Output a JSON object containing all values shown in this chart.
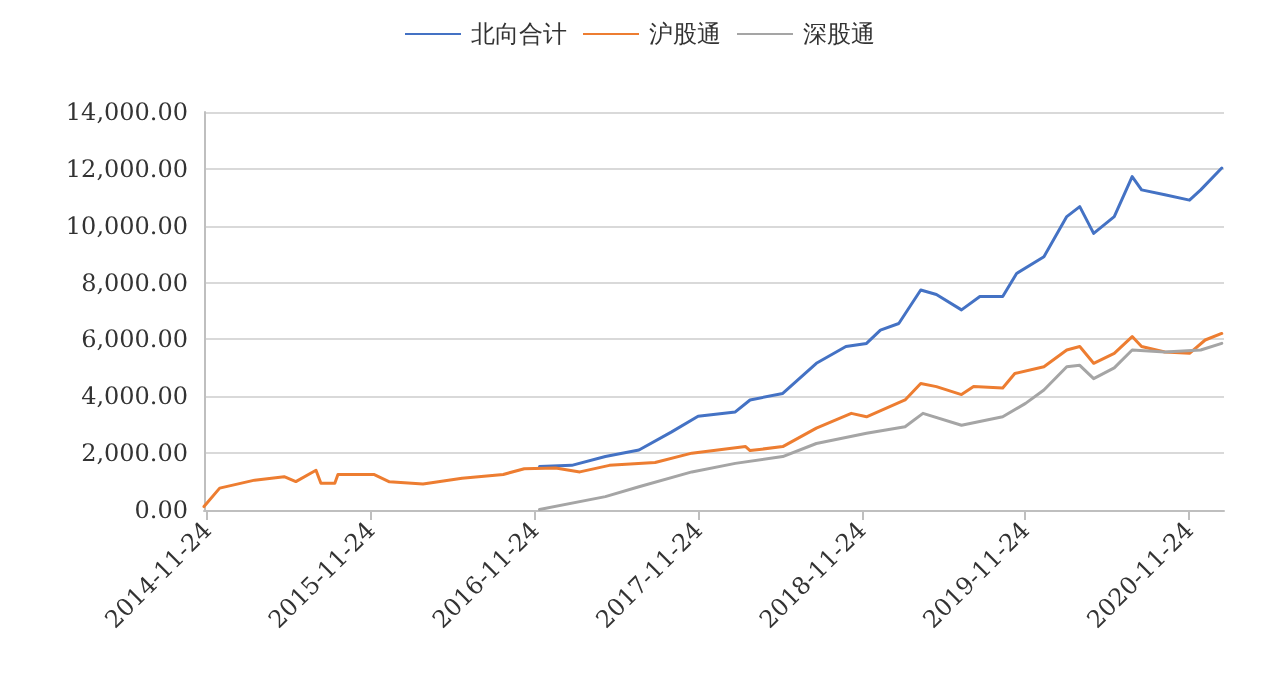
{
  "chart_data": {
    "type": "line",
    "xlim": [
      "2014-11-17",
      "2021-02-10"
    ],
    "xticks": [
      "2014-11-24",
      "2015-11-24",
      "2016-11-24",
      "2017-11-24",
      "2018-11-24",
      "2019-11-24",
      "2020-11-24"
    ],
    "ylim": [
      0,
      14000
    ],
    "yticks": [
      {
        "value": 0,
        "label": "0.00"
      },
      {
        "value": 2000,
        "label": "2,000.00"
      },
      {
        "value": 4000,
        "label": "4,000.00"
      },
      {
        "value": 6000,
        "label": "6,000.00"
      },
      {
        "value": 8000,
        "label": "8,000.00"
      },
      {
        "value": 10000,
        "label": "10,000.00"
      },
      {
        "value": 12000,
        "label": "12,000.00"
      },
      {
        "value": 14000,
        "label": "14,000.00"
      }
    ],
    "grid": "y",
    "legend": "top",
    "marker": "none",
    "line_style": "solid",
    "series": [
      {
        "name": "北向合计",
        "color": "#4472c4",
        "x": [
          "2016-12-05",
          "2017-02-15",
          "2017-05-01",
          "2017-07-15",
          "2017-09-25",
          "2017-11-24",
          "2018-02-15",
          "2018-03-20",
          "2018-06-01",
          "2018-08-15",
          "2018-10-20",
          "2018-12-05",
          "2019-01-05",
          "2019-02-15",
          "2019-04-05",
          "2019-05-10",
          "2019-07-05",
          "2019-08-15",
          "2019-10-05",
          "2019-11-05",
          "2020-01-05",
          "2020-02-25",
          "2020-03-25",
          "2020-04-25",
          "2020-06-10",
          "2020-07-20",
          "2020-08-10",
          "2020-10-01",
          "2020-11-25",
          "2020-12-20",
          "2021-02-05"
        ],
        "values": [
          1530,
          1570,
          1880,
          2110,
          2740,
          3300,
          3450,
          3870,
          4100,
          5160,
          5750,
          5860,
          6330,
          6560,
          7740,
          7580,
          7040,
          7510,
          7510,
          8320,
          8910,
          10320,
          10670,
          9730,
          10320,
          11730,
          11260,
          11090,
          10900,
          11260,
          12030
        ]
      },
      {
        "name": "沪股通",
        "color": "#ed7d31",
        "x": [
          "2014-11-17",
          "2014-12-22",
          "2015-03-10",
          "2015-05-15",
          "2015-06-10",
          "2015-07-25",
          "2015-08-05",
          "2015-09-05",
          "2015-09-12",
          "2015-12-01",
          "2016-01-05",
          "2016-03-20",
          "2016-06-15",
          "2016-09-15",
          "2016-11-01",
          "2017-01-10",
          "2017-03-05",
          "2017-05-10",
          "2017-08-20",
          "2017-11-10",
          "2018-03-10",
          "2018-03-20",
          "2018-06-01",
          "2018-08-15",
          "2018-11-01",
          "2018-12-05",
          "2019-03-01",
          "2019-04-05",
          "2019-05-10",
          "2019-07-05",
          "2019-08-01",
          "2019-10-05",
          "2019-11-01",
          "2020-01-05",
          "2020-02-25",
          "2020-03-25",
          "2020-04-25",
          "2020-06-10",
          "2020-07-20",
          "2020-08-10",
          "2020-10-01",
          "2020-11-25",
          "2020-12-30",
          "2021-02-05"
        ],
        "values": [
          120,
          770,
          1050,
          1170,
          1000,
          1400,
          940,
          940,
          1250,
          1250,
          990,
          915,
          1120,
          1250,
          1450,
          1480,
          1340,
          1570,
          1670,
          2000,
          2230,
          2090,
          2230,
          2880,
          3400,
          3280,
          3870,
          4450,
          4340,
          4060,
          4340,
          4290,
          4800,
          5040,
          5630,
          5750,
          5160,
          5510,
          6100,
          5750,
          5560,
          5510,
          5980,
          6210
        ]
      },
      {
        "name": "深股通",
        "color": "#a5a5a5",
        "x": [
          "2016-12-05",
          "2017-05-01",
          "2017-07-15",
          "2017-11-10",
          "2018-02-15",
          "2018-06-01",
          "2018-08-15",
          "2018-12-05",
          "2019-03-01",
          "2019-04-10",
          "2019-07-05",
          "2019-10-05",
          "2019-11-25",
          "2020-01-05",
          "2020-02-25",
          "2020-03-25",
          "2020-04-25",
          "2020-06-10",
          "2020-07-20",
          "2020-10-01",
          "2020-12-20",
          "2021-02-05"
        ],
        "values": [
          20,
          470,
          820,
          1340,
          1640,
          1880,
          2340,
          2700,
          2930,
          3400,
          2980,
          3280,
          3750,
          4220,
          5040,
          5090,
          4620,
          5000,
          5630,
          5560,
          5630,
          5860
        ]
      }
    ]
  }
}
